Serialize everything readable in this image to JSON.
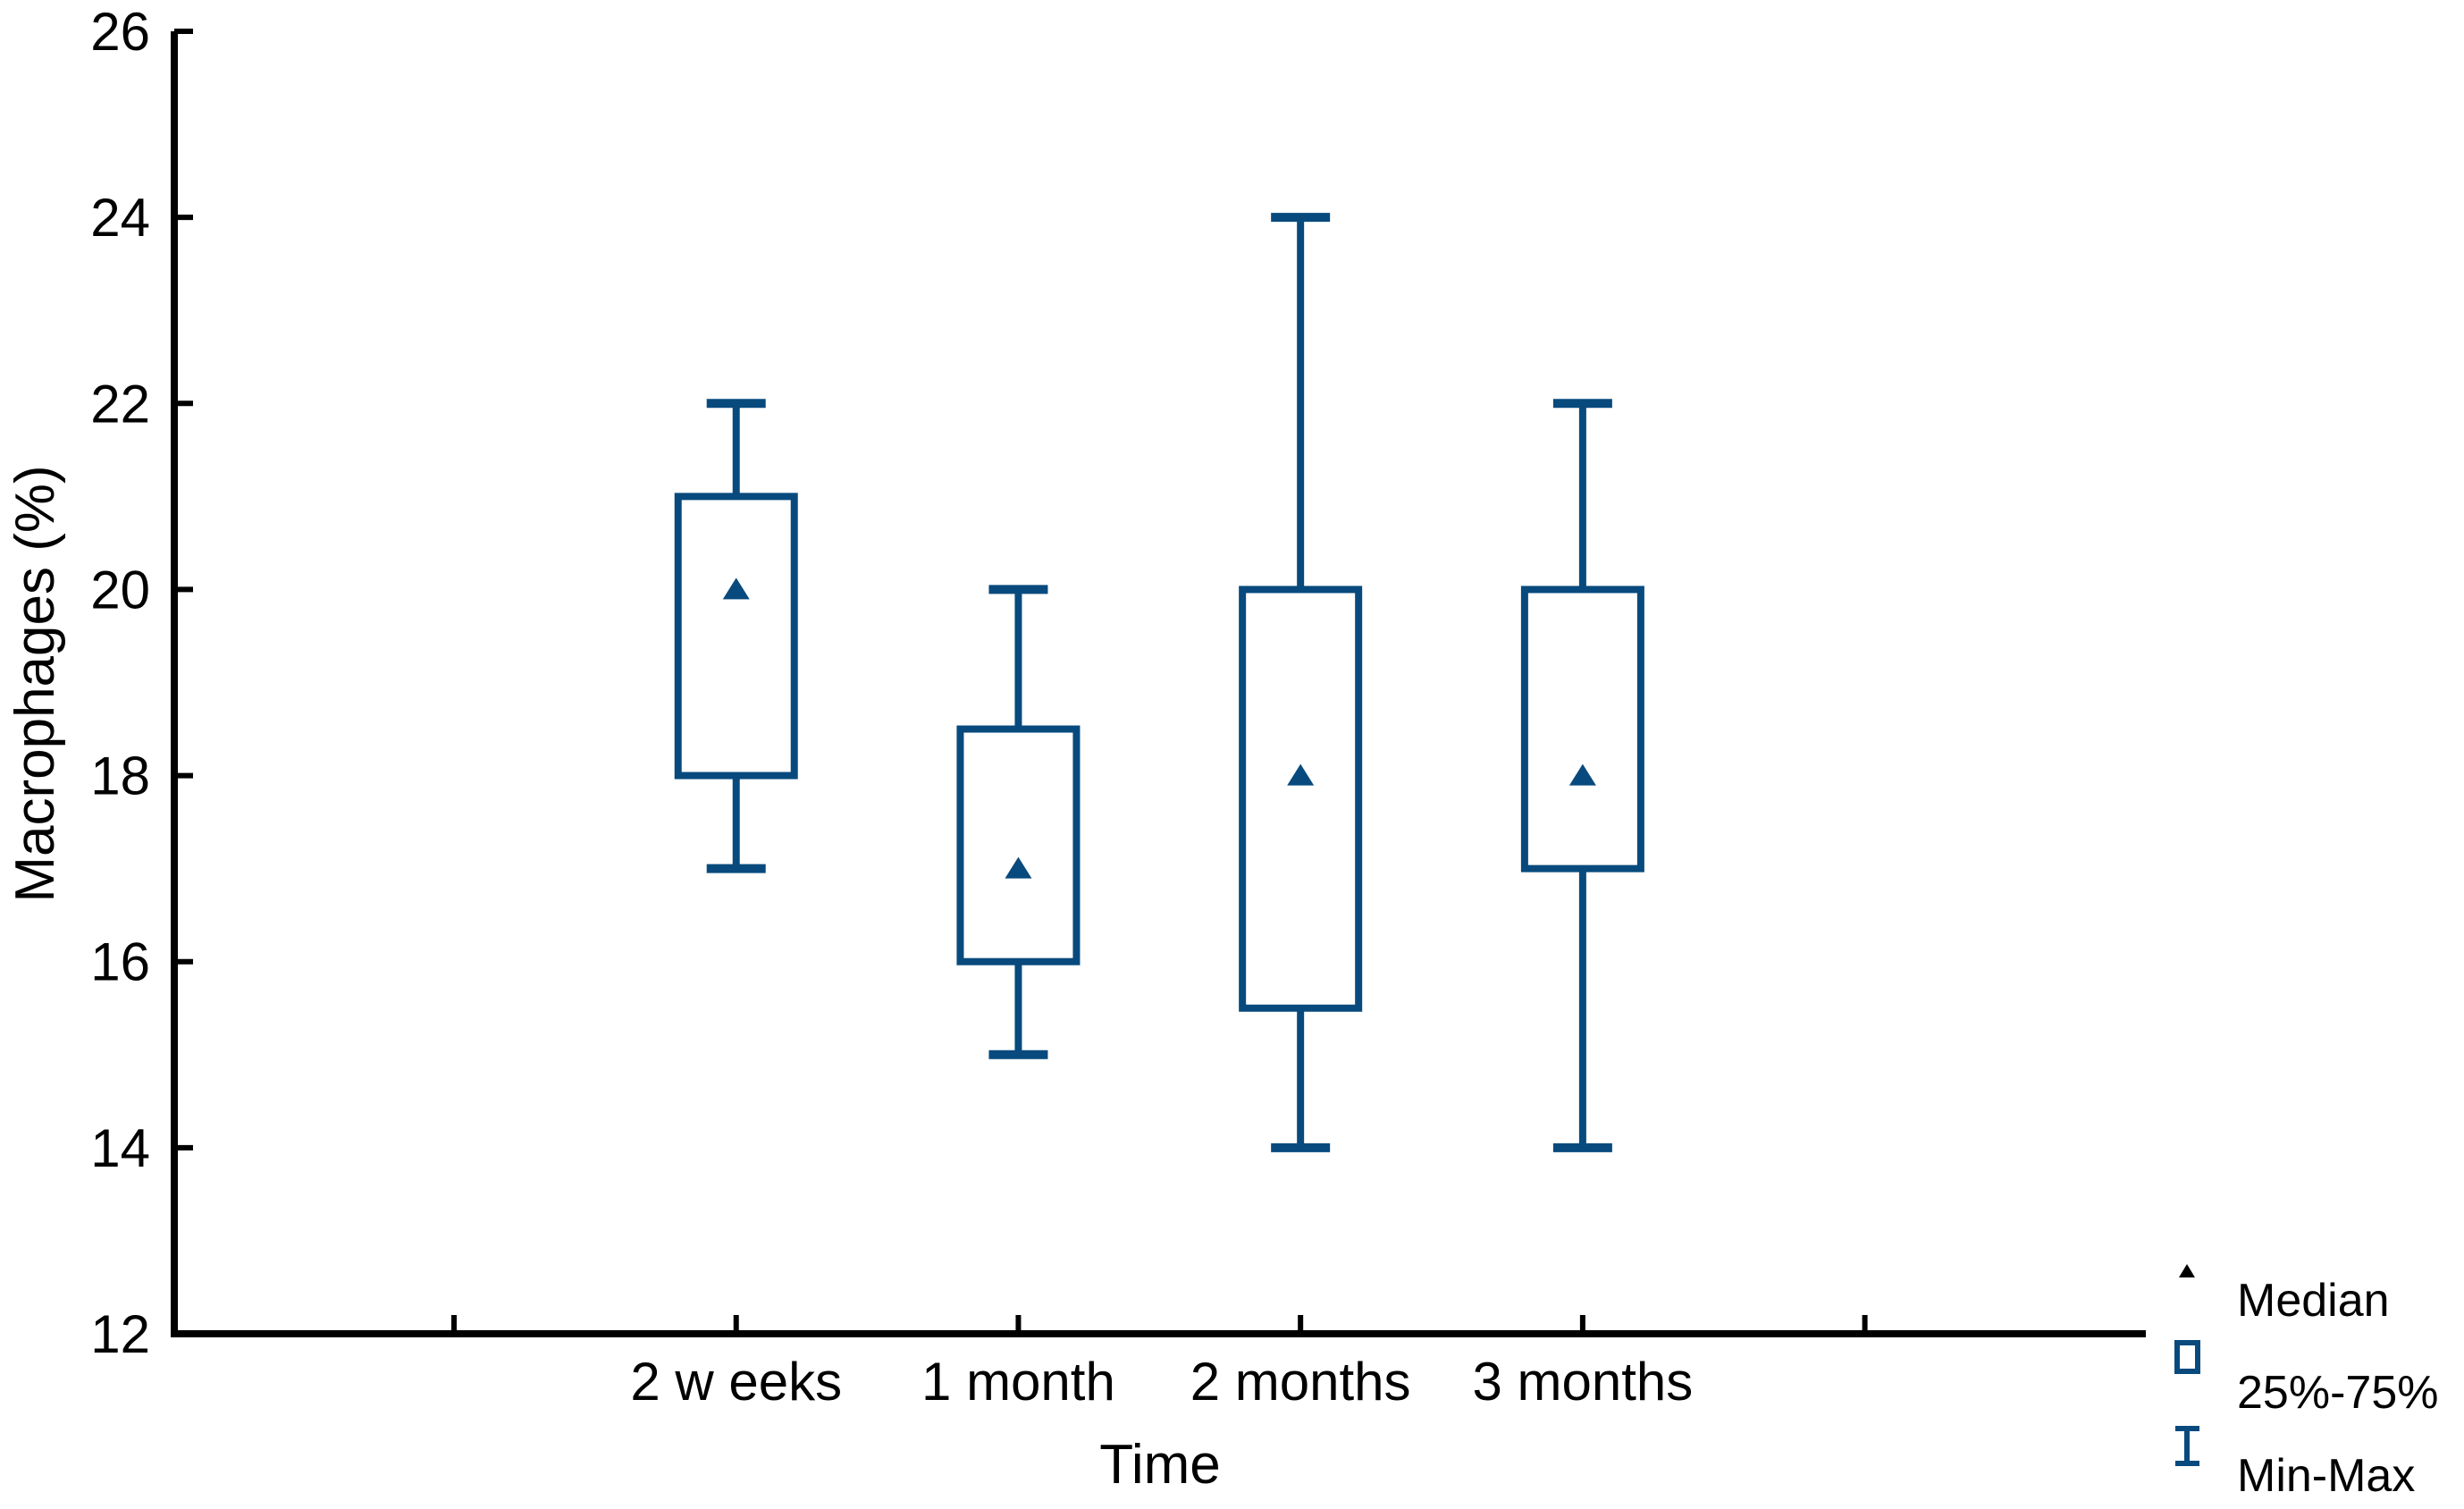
{
  "figure": {
    "background": "#ffffff"
  },
  "colors": {
    "box_blue": "#084a7d",
    "axis_black": "#000000",
    "text_black": "#000000"
  },
  "y_axis": {
    "title": "Macrophages (%)",
    "min": 12,
    "max": 26,
    "tick_step": 2,
    "ticks": [
      "12",
      "14",
      "16",
      "18",
      "20",
      "22",
      "24",
      "26"
    ]
  },
  "x_axis": {
    "title": "Time",
    "has_unlabeled_end_ticks": true
  },
  "chart_data": {
    "type": "box",
    "title": "",
    "xlabel": "Time",
    "ylabel": "Macrophages (%)",
    "ylim": [
      12,
      26
    ],
    "ytick_step": 2,
    "grid": false,
    "categories": [
      "2 w eeks",
      "1 month",
      "2 months",
      "3 months"
    ],
    "series": [
      {
        "name": "Macrophages (%)",
        "boxes": [
          {
            "category": "2 w eeks",
            "min": 17,
            "q1": 18,
            "median": 20,
            "q3": 21,
            "max": 22
          },
          {
            "category": "1 month",
            "min": 15,
            "q1": 16,
            "median": 17,
            "q3": 18.5,
            "max": 20
          },
          {
            "category": "2 months",
            "min": 14,
            "q1": 15.5,
            "median": 18,
            "q3": 20,
            "max": 24
          },
          {
            "category": "3 months",
            "min": 14,
            "q1": 17,
            "median": 18,
            "q3": 20,
            "max": 22
          }
        ]
      }
    ],
    "legend_position": "bottom-right",
    "legend": [
      {
        "icon": "median-triangle-icon",
        "label": "Median"
      },
      {
        "icon": "box-icon",
        "label": "25%-75%"
      },
      {
        "icon": "whisker-icon",
        "label": "Min-Max"
      }
    ]
  }
}
